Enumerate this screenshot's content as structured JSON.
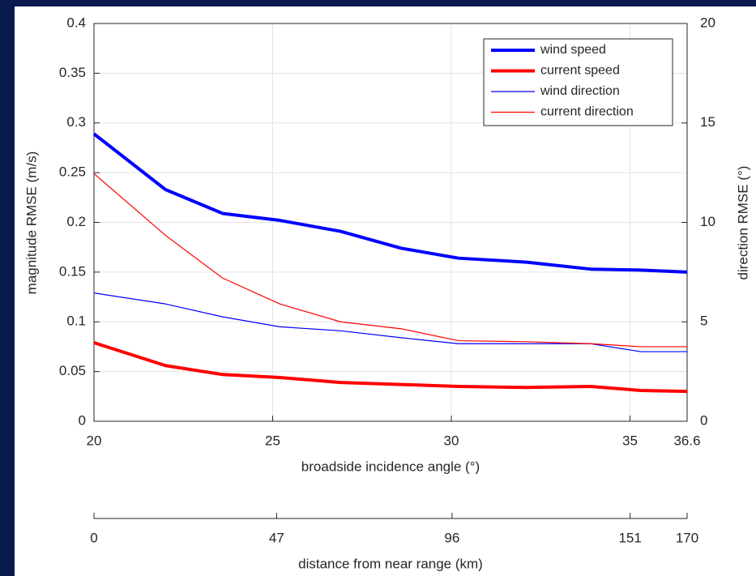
{
  "chart_data": {
    "type": "line",
    "xlabel": "broadside incidence angle (°)",
    "ylabel": "magnitude RMSE (m/s)",
    "y2label": "direction RMSE (°)",
    "x2label": "distance from near range (km)",
    "x": [
      20,
      22,
      23.6,
      25.2,
      26.9,
      28.6,
      30.2,
      32.1,
      33.9,
      35.3,
      36.6
    ],
    "series": [
      {
        "name": "wind speed",
        "color": "#0000ff",
        "width": 4,
        "values": [
          0.289,
          0.233,
          0.209,
          0.202,
          0.191,
          0.174,
          0.164,
          0.16,
          0.153,
          0.152,
          0.15
        ]
      },
      {
        "name": "current speed",
        "color": "#ff0000",
        "width": 4,
        "values": [
          0.079,
          0.056,
          0.047,
          0.044,
          0.039,
          0.037,
          0.035,
          0.034,
          0.035,
          0.031,
          0.03
        ]
      },
      {
        "name": "wind direction",
        "color": "#0000ff",
        "width": 1.2,
        "axis": "y2",
        "values": [
          6.45,
          5.9,
          5.25,
          4.75,
          4.55,
          4.2,
          3.9,
          3.9,
          3.9,
          3.5,
          3.5
        ]
      },
      {
        "name": "current direction",
        "color": "#ff0000",
        "width": 1.2,
        "axis": "y2",
        "values": [
          12.45,
          9.35,
          7.2,
          5.9,
          5.0,
          4.65,
          4.05,
          4.0,
          3.9,
          3.75,
          3.75
        ]
      }
    ],
    "xlim": [
      20,
      36.6
    ],
    "xticks": [
      20,
      25,
      30,
      35,
      36.6
    ],
    "ylim": [
      0,
      0.4
    ],
    "yticks": [
      0,
      0.05,
      0.1,
      0.15,
      0.2,
      0.25,
      0.3,
      0.35,
      0.4
    ],
    "y2lim": [
      0,
      20
    ],
    "y2ticks": [
      0,
      5,
      10,
      15,
      20
    ],
    "x2lim": [
      0,
      170
    ],
    "x2ticks": [
      0,
      47,
      96,
      151,
      170
    ],
    "grid": true,
    "legend": "top-right"
  }
}
